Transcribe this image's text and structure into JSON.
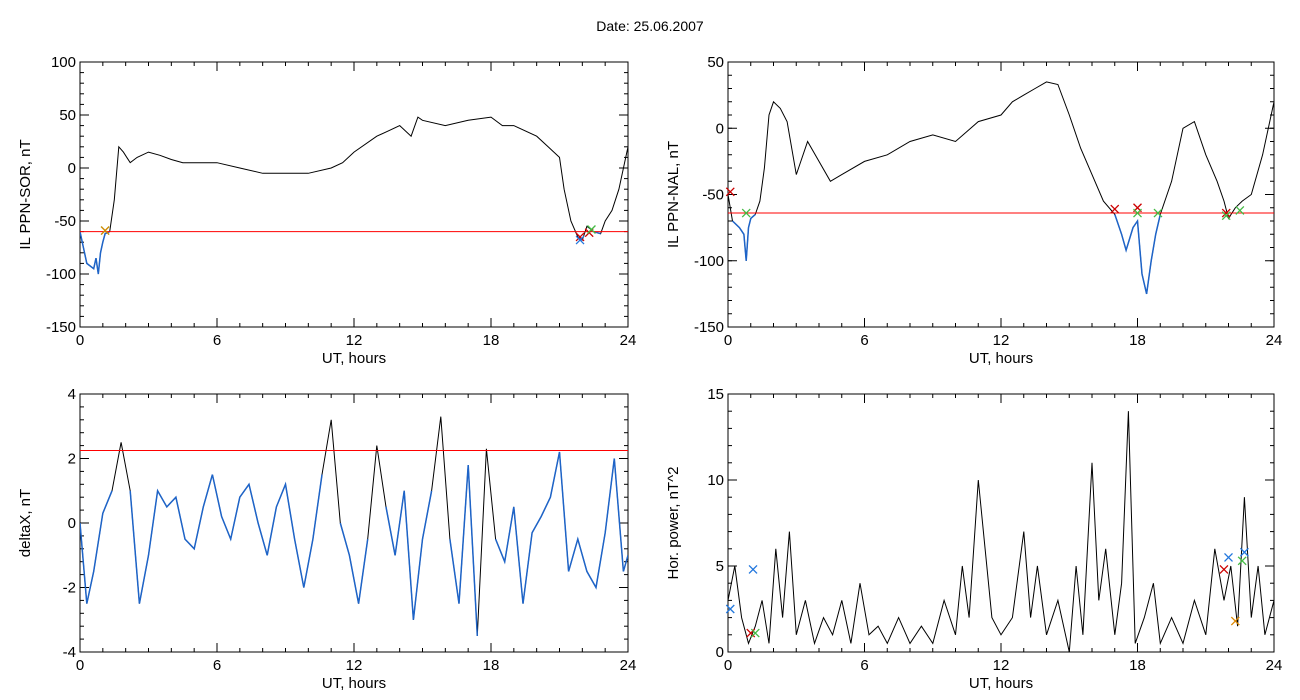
{
  "title": "Date:  25.06.2007",
  "colors": {
    "curve": "#000000",
    "threshold": "#ff0000",
    "segment": "#1e64c8",
    "mark_red": "#cc0000",
    "mark_green": "#44bb44",
    "mark_blue": "#2277dd",
    "mark_orange": "#dd8800"
  },
  "chart_data": [
    {
      "type": "line",
      "xlabel": "UT, hours",
      "ylabel": "IL PPN-SOR, nT",
      "xlim": [
        0,
        24
      ],
      "ylim": [
        -150,
        100
      ],
      "xticks": [
        0,
        6,
        12,
        18,
        24
      ],
      "yticks": [
        -150,
        -100,
        -50,
        0,
        50,
        100
      ],
      "threshold": -60,
      "series": [
        {
          "x": [
            0,
            0.3,
            0.6,
            0.7,
            0.8,
            0.9,
            1.0,
            1.1,
            1.3,
            1.5,
            1.7,
            1.9,
            2.2,
            2.5,
            3,
            3.5,
            4,
            4.5,
            5,
            6,
            7,
            8,
            9,
            10,
            11,
            11.5,
            12,
            13,
            13.5,
            14,
            14.5,
            14.8,
            15,
            16,
            17,
            18,
            18.5,
            19,
            20,
            20.5,
            21,
            21.2,
            21.5,
            21.8,
            22,
            22.2,
            22.5,
            22.8,
            23,
            23.3,
            23.6,
            24
          ],
          "y": [
            -60,
            -90,
            -95,
            -85,
            -100,
            -80,
            -70,
            -62,
            -60,
            -30,
            20,
            15,
            5,
            10,
            15,
            12,
            8,
            5,
            5,
            5,
            0,
            -5,
            -5,
            -5,
            0,
            5,
            15,
            30,
            35,
            40,
            30,
            48,
            45,
            40,
            45,
            48,
            40,
            40,
            30,
            20,
            10,
            -20,
            -50,
            -65,
            -68,
            -55,
            -60,
            -62,
            -50,
            -40,
            -20,
            20
          ]
        }
      ],
      "marks": [
        {
          "x": 1.1,
          "y": -59,
          "color": "green"
        },
        {
          "x": 1.1,
          "y": -59,
          "color": "orange"
        },
        {
          "x": 21.9,
          "y": -65,
          "color": "red"
        },
        {
          "x": 21.9,
          "y": -68,
          "color": "blue"
        },
        {
          "x": 22.3,
          "y": -61,
          "color": "red"
        },
        {
          "x": 22.4,
          "y": -58,
          "color": "green"
        }
      ]
    },
    {
      "type": "line",
      "xlabel": "UT, hours",
      "ylabel": "IL PPN-NAL, nT",
      "xlim": [
        0,
        24
      ],
      "ylim": [
        -150,
        50
      ],
      "xticks": [
        0,
        6,
        12,
        18,
        24
      ],
      "yticks": [
        -150,
        -100,
        -50,
        0,
        50
      ],
      "threshold": -64,
      "series": [
        {
          "x": [
            0,
            0.2,
            0.5,
            0.7,
            0.8,
            0.9,
            1.0,
            1.2,
            1.4,
            1.6,
            1.8,
            2.0,
            2.3,
            2.6,
            3,
            3.5,
            4,
            4.5,
            5,
            6,
            7,
            8,
            9,
            10,
            11,
            12,
            12.5,
            13,
            13.5,
            14,
            14.5,
            15,
            15.5,
            16,
            16.5,
            17,
            17.3,
            17.5,
            17.8,
            18.0,
            18.2,
            18.4,
            18.6,
            18.8,
            19,
            19.5,
            20,
            20.5,
            21,
            21.5,
            21.8,
            22,
            22.3,
            22.6,
            23,
            23.5,
            24
          ],
          "y": [
            -50,
            -70,
            -75,
            -80,
            -100,
            -75,
            -68,
            -65,
            -55,
            -30,
            10,
            20,
            15,
            5,
            -35,
            -10,
            -25,
            -40,
            -35,
            -25,
            -20,
            -10,
            -5,
            -10,
            5,
            10,
            20,
            25,
            30,
            35,
            33,
            10,
            -15,
            -35,
            -55,
            -65,
            -80,
            -92,
            -75,
            -70,
            -110,
            -125,
            -100,
            -80,
            -65,
            -40,
            0,
            5,
            -20,
            -40,
            -55,
            -68,
            -60,
            -55,
            -50,
            -20,
            20
          ]
        }
      ],
      "marks": [
        {
          "x": 0.1,
          "y": -48,
          "color": "red"
        },
        {
          "x": 0.8,
          "y": -64,
          "color": "green"
        },
        {
          "x": 17.0,
          "y": -61,
          "color": "red"
        },
        {
          "x": 18.0,
          "y": -60,
          "color": "red"
        },
        {
          "x": 18.0,
          "y": -64,
          "color": "green"
        },
        {
          "x": 18.9,
          "y": -64,
          "color": "green"
        },
        {
          "x": 21.9,
          "y": -64,
          "color": "red"
        },
        {
          "x": 21.9,
          "y": -66,
          "color": "green"
        },
        {
          "x": 22.5,
          "y": -62,
          "color": "green"
        }
      ]
    },
    {
      "type": "line",
      "xlabel": "UT, hours",
      "ylabel": "deltaX, nT",
      "xlim": [
        0,
        24
      ],
      "ylim": [
        -4,
        4
      ],
      "xticks": [
        0,
        6,
        12,
        18,
        24
      ],
      "yticks": [
        -4,
        -2,
        0,
        2,
        4
      ],
      "threshold": 2.25,
      "series": [
        {
          "x": [
            0,
            0.3,
            0.6,
            1.0,
            1.4,
            1.8,
            2.2,
            2.6,
            3.0,
            3.4,
            3.8,
            4.2,
            4.6,
            5.0,
            5.4,
            5.8,
            6.2,
            6.6,
            7.0,
            7.4,
            7.8,
            8.2,
            8.6,
            9.0,
            9.4,
            9.8,
            10.2,
            10.6,
            11.0,
            11.4,
            11.8,
            12.2,
            12.6,
            13.0,
            13.4,
            13.8,
            14.2,
            14.6,
            15.0,
            15.4,
            15.8,
            16.2,
            16.6,
            17.0,
            17.4,
            17.8,
            18.2,
            18.6,
            19.0,
            19.4,
            19.8,
            20.2,
            20.6,
            21.0,
            21.4,
            21.8,
            22.2,
            22.6,
            23.0,
            23.4,
            23.8,
            24
          ],
          "y": [
            0,
            -2.5,
            -1.5,
            0.3,
            1.0,
            2.5,
            1.0,
            -2.5,
            -1.0,
            1.0,
            0.5,
            0.8,
            -0.5,
            -0.8,
            0.5,
            1.5,
            0.2,
            -0.5,
            0.8,
            1.2,
            0.0,
            -1.0,
            0.5,
            1.2,
            -0.5,
            -2.0,
            -0.5,
            1.5,
            3.2,
            0.0,
            -1.0,
            -2.5,
            -0.5,
            2.4,
            0.5,
            -1.0,
            1.0,
            -3.0,
            -0.5,
            1.0,
            3.3,
            -0.5,
            -2.5,
            1.8,
            -3.5,
            2.3,
            -0.5,
            -1.2,
            0.5,
            -2.5,
            -0.3,
            0.2,
            0.8,
            2.2,
            -1.5,
            -0.5,
            -1.5,
            -2.0,
            -0.3,
            2.0,
            -1.5,
            -1.0
          ]
        }
      ],
      "marks": []
    },
    {
      "type": "line",
      "xlabel": "UT, hours",
      "ylabel": "Hor. power, nT^2",
      "xlim": [
        0,
        24
      ],
      "ylim": [
        0,
        15
      ],
      "xticks": [
        0,
        6,
        12,
        18,
        24
      ],
      "yticks": [
        0,
        5,
        10,
        15
      ],
      "threshold": null,
      "series": [
        {
          "x": [
            0,
            0.3,
            0.6,
            0.9,
            1.2,
            1.5,
            1.8,
            2.1,
            2.4,
            2.7,
            3.0,
            3.4,
            3.8,
            4.2,
            4.6,
            5.0,
            5.4,
            5.8,
            6.2,
            6.6,
            7.0,
            7.5,
            8.0,
            8.5,
            9.0,
            9.5,
            10.0,
            10.3,
            10.6,
            11.0,
            11.3,
            11.6,
            12.0,
            12.5,
            13.0,
            13.3,
            13.6,
            14.0,
            14.5,
            15.0,
            15.3,
            15.6,
            16.0,
            16.3,
            16.6,
            17.0,
            17.3,
            17.6,
            17.9,
            18.3,
            18.7,
            19.0,
            19.5,
            20.0,
            20.5,
            21.0,
            21.4,
            21.8,
            22.1,
            22.4,
            22.7,
            23.0,
            23.3,
            23.6,
            24
          ],
          "y": [
            3,
            5,
            2,
            0.5,
            1.5,
            3,
            0.5,
            6,
            2,
            7,
            1,
            3,
            0.5,
            2,
            1,
            3,
            0.5,
            4,
            1,
            1.5,
            0.5,
            2,
            0.5,
            1.5,
            0.5,
            3,
            1,
            5,
            2,
            10,
            6,
            2,
            1,
            2,
            7,
            2,
            5,
            1,
            3,
            0,
            5,
            1,
            11,
            3,
            6,
            1,
            4,
            14,
            0.5,
            2,
            4,
            0.5,
            2,
            0.5,
            3,
            1,
            6,
            3,
            5,
            1.5,
            9,
            2,
            5,
            1,
            3
          ]
        }
      ],
      "marks": [
        {
          "x": 0.1,
          "y": 2.5,
          "color": "blue"
        },
        {
          "x": 1.0,
          "y": 1.1,
          "color": "red"
        },
        {
          "x": 1.1,
          "y": 4.8,
          "color": "blue"
        },
        {
          "x": 1.2,
          "y": 1.1,
          "color": "green"
        },
        {
          "x": 21.8,
          "y": 4.8,
          "color": "red"
        },
        {
          "x": 22.0,
          "y": 5.5,
          "color": "blue"
        },
        {
          "x": 22.3,
          "y": 1.8,
          "color": "orange"
        },
        {
          "x": 22.6,
          "y": 5.3,
          "color": "green"
        },
        {
          "x": 22.7,
          "y": 5.8,
          "color": "blue"
        }
      ]
    }
  ]
}
